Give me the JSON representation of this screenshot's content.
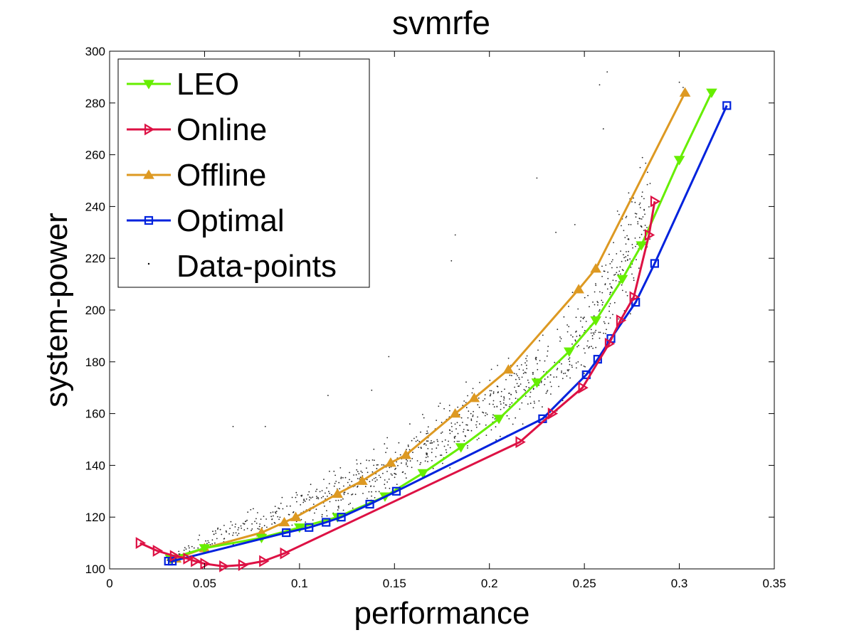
{
  "chart_data": {
    "type": "line",
    "title": "svmrfe",
    "xlabel": "performance",
    "ylabel": "system-power",
    "xlim": [
      0,
      0.35
    ],
    "ylim": [
      100,
      300
    ],
    "xticks": [
      0,
      0.05,
      0.1,
      0.15,
      0.2,
      0.25,
      0.3,
      0.35
    ],
    "xtick_labels": [
      "0",
      "0.05",
      "0.1",
      "0.15",
      "0.2",
      "0.25",
      "0.3",
      "0.35"
    ],
    "yticks": [
      100,
      120,
      140,
      160,
      180,
      200,
      220,
      240,
      260,
      280,
      300
    ],
    "ytick_labels": [
      "100",
      "120",
      "140",
      "160",
      "180",
      "200",
      "220",
      "240",
      "260",
      "280",
      "300"
    ],
    "grid": false,
    "legend_position": "top-left",
    "series": [
      {
        "name": "LEO",
        "color": "#66ee00",
        "marker": "triangle-down",
        "points": [
          [
            0.032,
            104
          ],
          [
            0.05,
            108
          ],
          [
            0.08,
            112
          ],
          [
            0.1,
            116
          ],
          [
            0.12,
            120
          ],
          [
            0.145,
            128
          ],
          [
            0.165,
            137
          ],
          [
            0.185,
            147
          ],
          [
            0.205,
            158
          ],
          [
            0.225,
            172
          ],
          [
            0.242,
            184
          ],
          [
            0.256,
            196
          ],
          [
            0.27,
            212
          ],
          [
            0.28,
            225
          ],
          [
            0.3,
            258
          ],
          [
            0.317,
            284
          ]
        ]
      },
      {
        "name": "Online",
        "color": "#dd1144",
        "marker": "triangle-right",
        "points": [
          [
            0.016,
            110
          ],
          [
            0.025,
            107
          ],
          [
            0.034,
            105
          ],
          [
            0.041,
            104
          ],
          [
            0.045,
            103
          ],
          [
            0.05,
            102
          ],
          [
            0.06,
            101
          ],
          [
            0.07,
            101.5
          ],
          [
            0.081,
            103
          ],
          [
            0.092,
            106
          ],
          [
            0.216,
            149
          ],
          [
            0.233,
            160
          ],
          [
            0.249,
            170
          ],
          [
            0.263,
            187
          ],
          [
            0.269,
            196
          ],
          [
            0.276,
            205
          ],
          [
            0.284,
            229
          ],
          [
            0.287,
            242
          ]
        ]
      },
      {
        "name": "Offline",
        "color": "#dd9922",
        "marker": "triangle-up",
        "points": [
          [
            0.035,
            104
          ],
          [
            0.05,
            108
          ],
          [
            0.08,
            114
          ],
          [
            0.092,
            118
          ],
          [
            0.098,
            120
          ],
          [
            0.12,
            129
          ],
          [
            0.133,
            134
          ],
          [
            0.148,
            141
          ],
          [
            0.156,
            144
          ],
          [
            0.182,
            160
          ],
          [
            0.192,
            166
          ],
          [
            0.21,
            177
          ],
          [
            0.247,
            208
          ],
          [
            0.256,
            216
          ],
          [
            0.303,
            284
          ]
        ]
      },
      {
        "name": "Optimal",
        "color": "#0022dd",
        "marker": "square",
        "points": [
          [
            0.031,
            103
          ],
          [
            0.033,
            103
          ],
          [
            0.093,
            114
          ],
          [
            0.105,
            116
          ],
          [
            0.114,
            118
          ],
          [
            0.122,
            120
          ],
          [
            0.137,
            125
          ],
          [
            0.151,
            130
          ],
          [
            0.228,
            158
          ],
          [
            0.251,
            175
          ],
          [
            0.257,
            181
          ],
          [
            0.264,
            189
          ],
          [
            0.277,
            203
          ],
          [
            0.287,
            218
          ],
          [
            0.325,
            279
          ]
        ]
      },
      {
        "name": "Data-points",
        "color": "#000000",
        "marker": "dot"
      }
    ]
  }
}
